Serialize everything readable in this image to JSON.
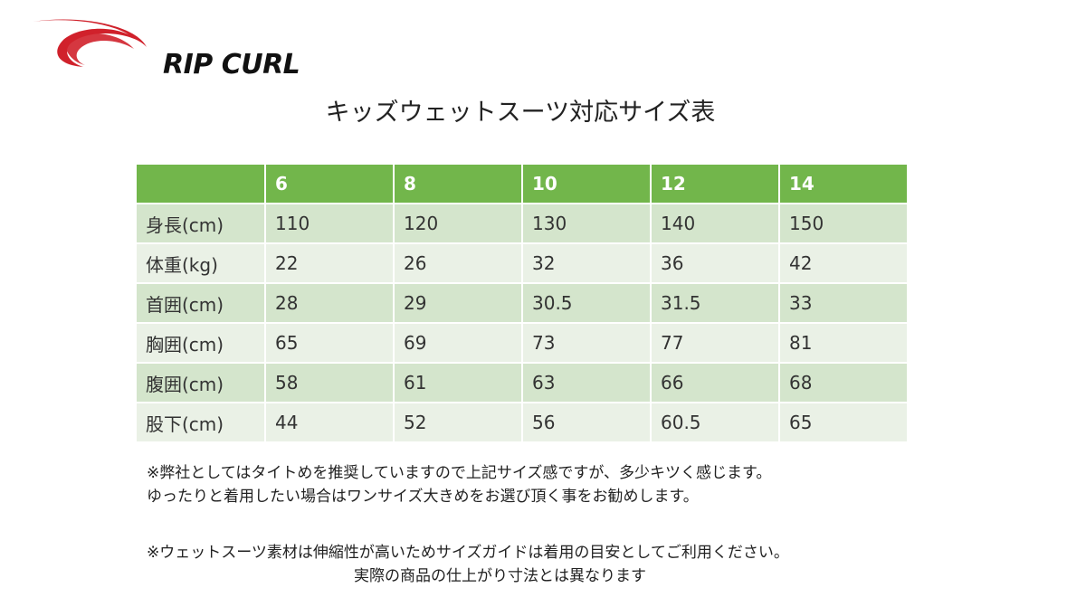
{
  "logo": {
    "text": "RIP CURL",
    "swoosh_color": "#d0212b"
  },
  "title": "キッズウェットスーツ対応サイズ表",
  "table": {
    "header": [
      "",
      "6",
      "8",
      "10",
      "12",
      "14"
    ],
    "rows": [
      [
        "身長(cm)",
        "110",
        "120",
        "130",
        "140",
        "150"
      ],
      [
        "体重(kg)",
        "22",
        "26",
        "32",
        "36",
        "42"
      ],
      [
        "首囲(cm)",
        "28",
        "29",
        "30.5",
        "31.5",
        "33"
      ],
      [
        "胸囲(cm)",
        "65",
        "69",
        "73",
        "77",
        "81"
      ],
      [
        "腹囲(cm)",
        "58",
        "61",
        "63",
        "66",
        "68"
      ],
      [
        "股下(cm)",
        "44",
        "52",
        "56",
        "60.5",
        "65"
      ]
    ],
    "header_color": "#72b64b",
    "row_colors": [
      "#d4e5cc",
      "#eaf1e6"
    ]
  },
  "notes": {
    "note1_line1": "※弊社としてはタイトめを推奨していますので上記サイズ感ですが、多少キツく感じます。",
    "note1_line2": "ゆったりと着用したい場合はワンサイズ大きめをお選び頂く事をお勧めします。",
    "note2_line1": "※ウェットスーツ素材は伸縮性が高いためサイズガイドは着用の目安としてご利用ください。",
    "note2_line2": "実際の商品の仕上がり寸法とは異なります"
  }
}
